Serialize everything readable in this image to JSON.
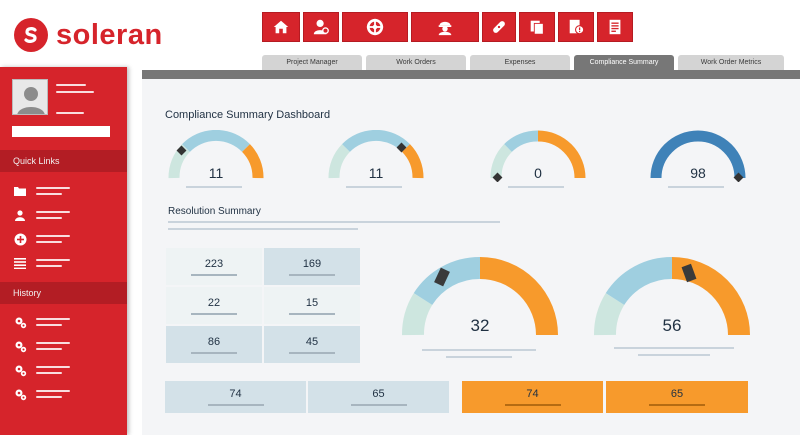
{
  "brand": {
    "name": "soleran",
    "color": "#d6242b"
  },
  "toolbar": {
    "buttons": [
      {
        "icon": "home-icon"
      },
      {
        "icon": "user-settings-icon"
      },
      {
        "icon": "lifebuoy-icon"
      },
      {
        "icon": "worker-icon"
      },
      {
        "icon": "bandage-icon"
      },
      {
        "icon": "documents-icon"
      },
      {
        "icon": "alert-document-icon"
      },
      {
        "icon": "report-icon"
      }
    ]
  },
  "tabs": [
    {
      "label": "Project Manager",
      "active": false
    },
    {
      "label": "Work Orders",
      "active": false
    },
    {
      "label": "Expenses",
      "active": false
    },
    {
      "label": "Compliance Summary",
      "active": true
    },
    {
      "label": "Work Order Metrics",
      "active": false
    }
  ],
  "sidebar": {
    "quick_links_title": "Quick Links",
    "history_title": "History",
    "quick_links": [
      {
        "icon": "folder-icon"
      },
      {
        "icon": "person-icon"
      },
      {
        "icon": "add-icon"
      },
      {
        "icon": "list-icon"
      }
    ],
    "history": [
      {
        "icon": "gears-icon"
      },
      {
        "icon": "gears-icon"
      },
      {
        "icon": "gears-icon"
      },
      {
        "icon": "gears-icon"
      }
    ]
  },
  "dashboard": {
    "title": "Compliance Summary Dashboard",
    "small_gauges": [
      {
        "value": "11",
        "level": 0.1
      },
      {
        "value": "11",
        "level": 0.67
      },
      {
        "value": "0",
        "level": 0.0
      },
      {
        "value": "98",
        "level": 1.0
      }
    ],
    "resolution_title": "Resolution Summary",
    "grid": [
      [
        "223",
        "169"
      ],
      [
        "22",
        "15"
      ],
      [
        "86",
        "45"
      ]
    ],
    "large_gauges": [
      {
        "value": "32",
        "level": 0.4
      },
      {
        "value": "56",
        "level": 0.6
      }
    ],
    "bottom_row": [
      "74",
      "65",
      "74",
      "65"
    ]
  },
  "colors": {
    "red": "#d6242b",
    "dark_red": "#b31d24",
    "orange": "#f79a2c",
    "light_blue": "#9fcfe0",
    "pale_teal": "#cde6df",
    "dark_blue": "#3f82b8",
    "text": "#1f3042"
  }
}
